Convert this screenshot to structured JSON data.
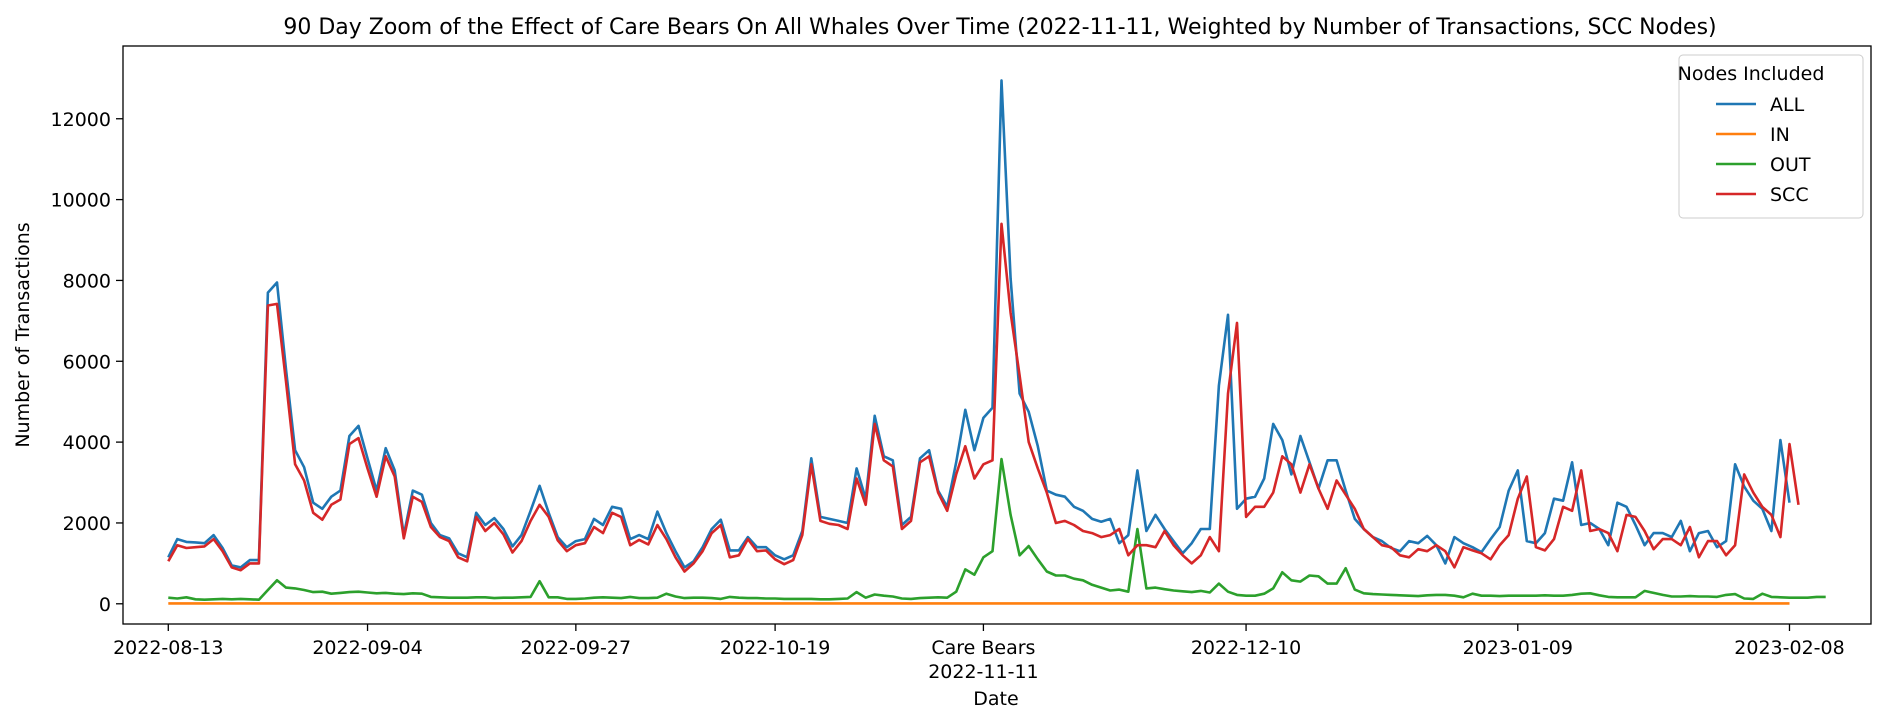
{
  "chart_data": {
    "type": "line",
    "title": "90 Day Zoom of the Effect of Care Bears On All Whales Over Time (2022-11-11, Weighted by Number of Transactions, SCC Nodes)",
    "xlabel": "Date",
    "ylabel": "Number of Transactions",
    "x_start": "2022-08-13",
    "x_end": "2023-02-08",
    "xlim": [
      "2022-08-08",
      "2023-02-17"
    ],
    "ylim": [
      -500,
      13800
    ],
    "yticks": [
      0,
      2000,
      4000,
      6000,
      8000,
      10000,
      12000
    ],
    "xticks": [
      {
        "date": "2022-08-13",
        "label": "2022-08-13"
      },
      {
        "date": "2022-09-04",
        "label": "2022-09-04"
      },
      {
        "date": "2022-09-27",
        "label": "2022-09-27"
      },
      {
        "date": "2022-10-19",
        "label": "2022-10-19"
      },
      {
        "date": "2022-11-11",
        "label": "Care Bears",
        "label2": "2022-11-11"
      },
      {
        "date": "2022-12-10",
        "label": "2022-12-10"
      },
      {
        "date": "2023-01-09",
        "label": "2023-01-09"
      },
      {
        "date": "2023-02-08",
        "label": "2023-02-08"
      }
    ],
    "legend": {
      "title": "Nodes Included",
      "placement": "top-right"
    },
    "grid": false,
    "series": [
      {
        "name": "ALL",
        "color": "#1f77b4",
        "values": [
          1150,
          1600,
          1530,
          1520,
          1500,
          1700,
          1380,
          950,
          900,
          1080,
          1080,
          7700,
          7950,
          5800,
          3800,
          3380,
          2500,
          2350,
          2650,
          2800,
          4150,
          4400,
          3600,
          2800,
          3850,
          3300,
          1700,
          2800,
          2700,
          2000,
          1700,
          1620,
          1250,
          1150,
          2250,
          1950,
          2120,
          1850,
          1420,
          1700,
          2300,
          2920,
          2250,
          1650,
          1400,
          1550,
          1600,
          2100,
          1950,
          2400,
          2350,
          1600,
          1700,
          1600,
          2280,
          1750,
          1300,
          900,
          1050,
          1400,
          1850,
          2080,
          1320,
          1320,
          1650,
          1400,
          1400,
          1200,
          1100,
          1200,
          1800,
          3600,
          2150,
          2100,
          2050,
          2000,
          3350,
          2600,
          4650,
          3650,
          3550,
          1950,
          2150,
          3600,
          3800,
          2800,
          2400,
          3500,
          4800,
          3800,
          4600,
          4850,
          12950,
          8050,
          5200,
          4750,
          3900,
          2800,
          2700,
          2650,
          2400,
          2300,
          2100,
          2030,
          2100,
          1500,
          1700,
          3300,
          1800,
          2200,
          1850,
          1550,
          1250,
          1500,
          1850,
          1850,
          5400,
          7150,
          2350,
          2600,
          2650,
          3100,
          4450,
          4050,
          3200,
          4150,
          3500,
          2850,
          3550,
          3550,
          2800,
          2100,
          1850,
          1650,
          1550,
          1380,
          1300,
          1550,
          1500,
          1680,
          1450,
          1000,
          1650,
          1500,
          1400,
          1280,
          1600,
          1900,
          2800,
          3300,
          1550,
          1500,
          1750,
          2600,
          2550,
          3500,
          1950,
          2000,
          1850,
          1450,
          2500,
          2400,
          1950,
          1450,
          1750,
          1750,
          1650,
          2050,
          1300,
          1750,
          1800,
          1400,
          1550,
          3450,
          2900,
          2550,
          2350,
          1800,
          4050,
          2500
        ]
      },
      {
        "name": "IN",
        "color": "#ff7f0e",
        "values": [
          10,
          10,
          10,
          10,
          10,
          10,
          10,
          10,
          10,
          10,
          10,
          10,
          10,
          10,
          10,
          10,
          10,
          10,
          10,
          10,
          10,
          10,
          10,
          10,
          10,
          10,
          10,
          10,
          10,
          10,
          10,
          10,
          10,
          10,
          10,
          10,
          10,
          10,
          10,
          10,
          10,
          10,
          10,
          10,
          10,
          10,
          10,
          10,
          10,
          10,
          10,
          10,
          10,
          10,
          10,
          10,
          10,
          10,
          10,
          10,
          10,
          10,
          10,
          10,
          10,
          10,
          10,
          10,
          10,
          10,
          10,
          10,
          10,
          10,
          10,
          10,
          10,
          10,
          10,
          10,
          10,
          10,
          10,
          10,
          10,
          10,
          10,
          10,
          10,
          10,
          10,
          10,
          10,
          10,
          10,
          10,
          10,
          10,
          10,
          10,
          10,
          10,
          10,
          10,
          10,
          10,
          10,
          10,
          10,
          10,
          10,
          10,
          10,
          10,
          10,
          10,
          10,
          10,
          10,
          10,
          10,
          10,
          10,
          10,
          10,
          10,
          10,
          10,
          10,
          10,
          10,
          10,
          10,
          10,
          10,
          10,
          10,
          10,
          10,
          10,
          10,
          10,
          10,
          10,
          10,
          10,
          10,
          10,
          10,
          10,
          10,
          10,
          10,
          10,
          10,
          10,
          10,
          10,
          10,
          10,
          10,
          10,
          10,
          10,
          10,
          10,
          10,
          10,
          10,
          10,
          10,
          10,
          10,
          10,
          10,
          10,
          10,
          10,
          10,
          10
        ]
      },
      {
        "name": "OUT",
        "color": "#2ca02c",
        "values": [
          150,
          130,
          160,
          110,
          100,
          110,
          120,
          110,
          120,
          110,
          100,
          340,
          580,
          400,
          380,
          340,
          290,
          300,
          250,
          270,
          290,
          300,
          280,
          260,
          270,
          250,
          240,
          260,
          250,
          170,
          160,
          150,
          150,
          150,
          160,
          160,
          140,
          150,
          150,
          160,
          170,
          560,
          160,
          160,
          120,
          120,
          130,
          150,
          160,
          150,
          140,
          170,
          140,
          140,
          150,
          250,
          180,
          140,
          150,
          150,
          140,
          120,
          170,
          150,
          140,
          140,
          130,
          130,
          120,
          120,
          120,
          120,
          110,
          110,
          120,
          130,
          290,
          150,
          230,
          200,
          180,
          130,
          120,
          140,
          150,
          160,
          150,
          300,
          850,
          720,
          1150,
          1300,
          3580,
          2200,
          1200,
          1430,
          1100,
          800,
          700,
          700,
          620,
          580,
          470,
          400,
          330,
          350,
          300,
          1850,
          380,
          400,
          360,
          330,
          310,
          290,
          320,
          280,
          500,
          300,
          220,
          200,
          200,
          250,
          380,
          780,
          580,
          550,
          700,
          680,
          500,
          500,
          880,
          350,
          260,
          240,
          230,
          220,
          210,
          200,
          190,
          210,
          220,
          220,
          200,
          160,
          250,
          200,
          200,
          190,
          200,
          200,
          200,
          200,
          210,
          200,
          200,
          220,
          250,
          260,
          210,
          170,
          160,
          160,
          160,
          320,
          270,
          220,
          180,
          180,
          190,
          180,
          180,
          170,
          220,
          240,
          130,
          120,
          250,
          170,
          160,
          150,
          150,
          150,
          170,
          170
        ]
      },
      {
        "name": "SCC",
        "color": "#d62728",
        "values": [
          1050,
          1450,
          1380,
          1400,
          1420,
          1600,
          1300,
          900,
          830,
          1000,
          1000,
          7380,
          7420,
          5500,
          3450,
          3050,
          2250,
          2080,
          2450,
          2580,
          3950,
          4100,
          3350,
          2650,
          3650,
          3150,
          1620,
          2650,
          2520,
          1900,
          1650,
          1550,
          1150,
          1050,
          2150,
          1800,
          2000,
          1720,
          1270,
          1550,
          2050,
          2450,
          2150,
          1570,
          1300,
          1450,
          1500,
          1900,
          1750,
          2250,
          2150,
          1450,
          1580,
          1470,
          1950,
          1600,
          1150,
          800,
          1000,
          1300,
          1750,
          1950,
          1150,
          1200,
          1600,
          1300,
          1320,
          1100,
          980,
          1080,
          1700,
          3450,
          2050,
          1980,
          1950,
          1850,
          3100,
          2450,
          4450,
          3550,
          3400,
          1850,
          2050,
          3500,
          3650,
          2750,
          2300,
          3200,
          3900,
          3100,
          3450,
          3550,
          9400,
          7200,
          5650,
          4000,
          3350,
          2750,
          2000,
          2050,
          1950,
          1800,
          1750,
          1650,
          1700,
          1850,
          1200,
          1450,
          1450,
          1400,
          1800,
          1450,
          1200,
          1000,
          1200,
          1650,
          1300,
          5200,
          6950,
          2150,
          2400,
          2400,
          2750,
          3650,
          3450,
          2750,
          3450,
          2850,
          2350,
          3050,
          2700,
          2350,
          1850,
          1650,
          1450,
          1400,
          1200,
          1150,
          1350,
          1300,
          1450,
          1300,
          900,
          1400,
          1320,
          1250,
          1100,
          1450,
          1700,
          2600,
          3150,
          1400,
          1320,
          1600,
          2400,
          2300,
          3300,
          1800,
          1850,
          1750,
          1300,
          2200,
          2150,
          1800,
          1350,
          1600,
          1600,
          1450,
          1900,
          1150,
          1550,
          1550,
          1200,
          1450,
          3200,
          2750,
          2400,
          2200,
          1650,
          3950,
          2450
        ]
      }
    ]
  }
}
